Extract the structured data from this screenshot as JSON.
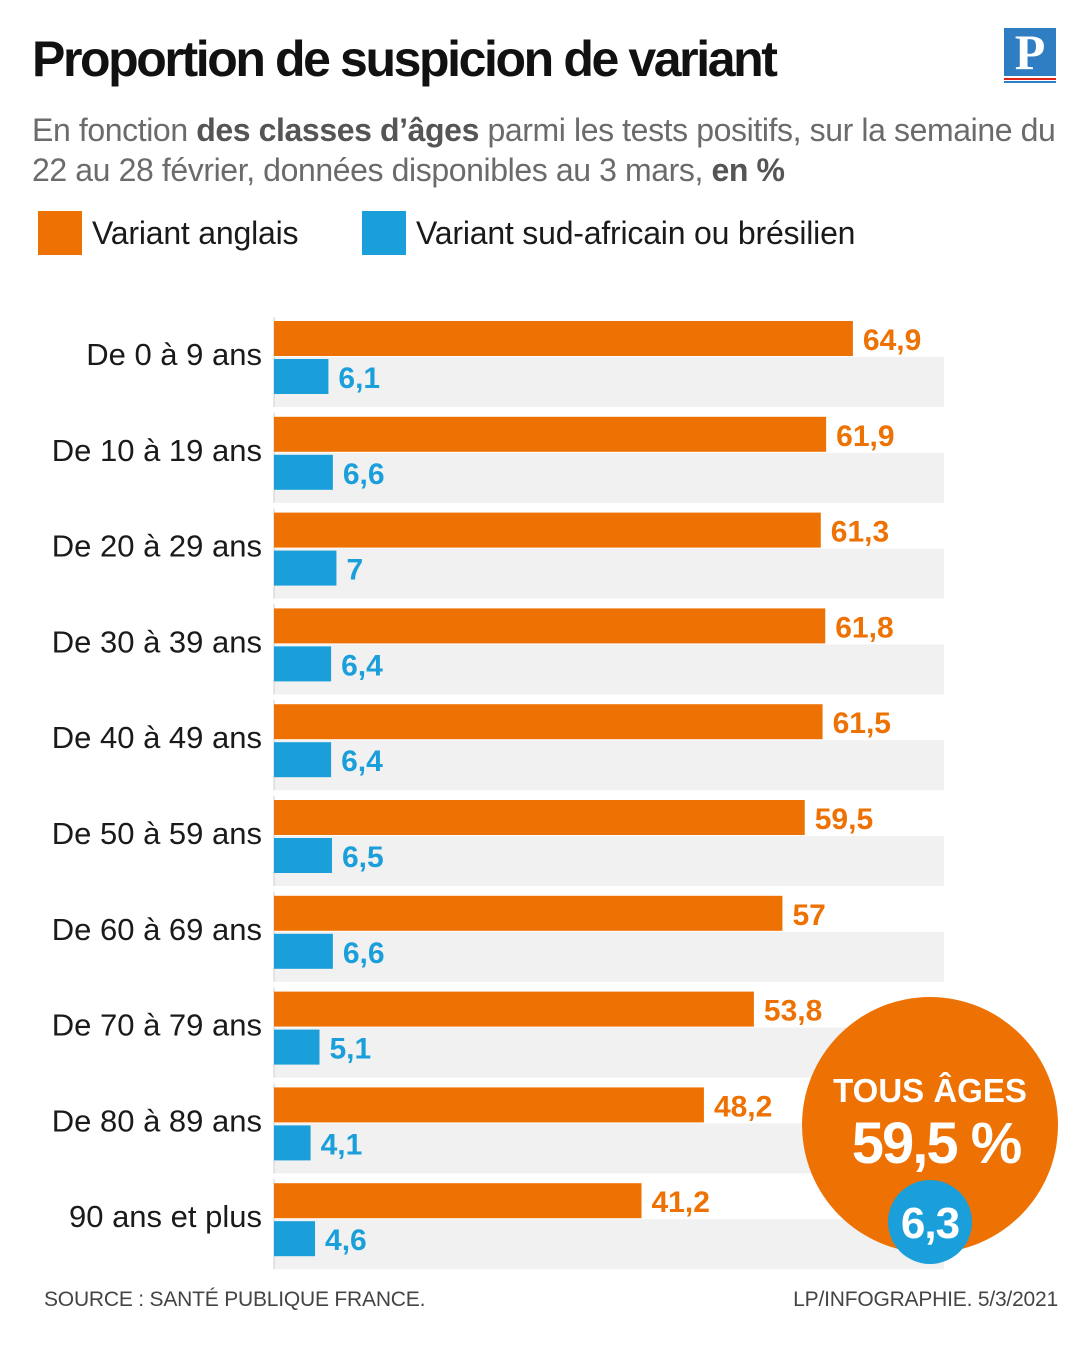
{
  "header": {
    "title": "Proportion de suspicion de variant",
    "subtitle_parts": [
      {
        "text": "En fonction ",
        "bold": false
      },
      {
        "text": "des classes d’âges",
        "bold": true
      },
      {
        "text": " parmi les tests positifs, sur la semaine du 22 au 28 février, données disponibles au 3 mars, ",
        "bold": false
      },
      {
        "text": "en %",
        "bold": true
      }
    ]
  },
  "logo": {
    "letter": "P",
    "color": "#2f7ec4",
    "rule_colors": [
      "#e2231a",
      "#2f7ec4"
    ]
  },
  "colors": {
    "orange": "#ee7203",
    "blue": "#1a9fdb",
    "band": "#f1f1f1"
  },
  "chart_data": {
    "type": "bar",
    "orientation": "horizontal",
    "categories": [
      "De 0 à 9 ans",
      "De 10 à 19 ans",
      "De 20 à 29 ans",
      "De 30 à 39 ans",
      "De 40 à 49 ans",
      "De 50 à 59 ans",
      "De 60 à 69 ans",
      "De 70 à 79 ans",
      "De 80 à 89 ans",
      "90 ans et plus"
    ],
    "series": [
      {
        "name": "Variant anglais",
        "color": "#ee7203",
        "values": [
          64.9,
          61.9,
          61.3,
          61.8,
          61.5,
          59.5,
          57,
          53.8,
          48.2,
          41.2
        ],
        "labels": [
          "64,9",
          "61,9",
          "61,3",
          "61,8",
          "61,5",
          "59,5",
          "57",
          "53,8",
          "48,2",
          "41,2"
        ]
      },
      {
        "name": "Variant sud-africain ou brésilien",
        "color": "#1a9fdb",
        "values": [
          6.1,
          6.6,
          7,
          6.4,
          6.4,
          6.5,
          6.6,
          5.1,
          4.1,
          4.6
        ],
        "labels": [
          "6,1",
          "6,6",
          "7",
          "6,4",
          "6,4",
          "6,5",
          "6,6",
          "5,1",
          "4,1",
          "4,6"
        ]
      }
    ],
    "xlim": [
      0,
      70
    ],
    "grid": false,
    "legend_position": "top-left",
    "summary": {
      "title": "TOUS ÂGES",
      "value_anglais": 59.5,
      "label_anglais": "59,5 %",
      "value_sud_africain": 6.3,
      "label_sud_africain": "6,3"
    }
  },
  "footer": {
    "source": "SOURCE : SANTÉ PUBLIQUE FRANCE.",
    "credit": "LP/INFOGRAPHIE. 5/3/2021"
  }
}
